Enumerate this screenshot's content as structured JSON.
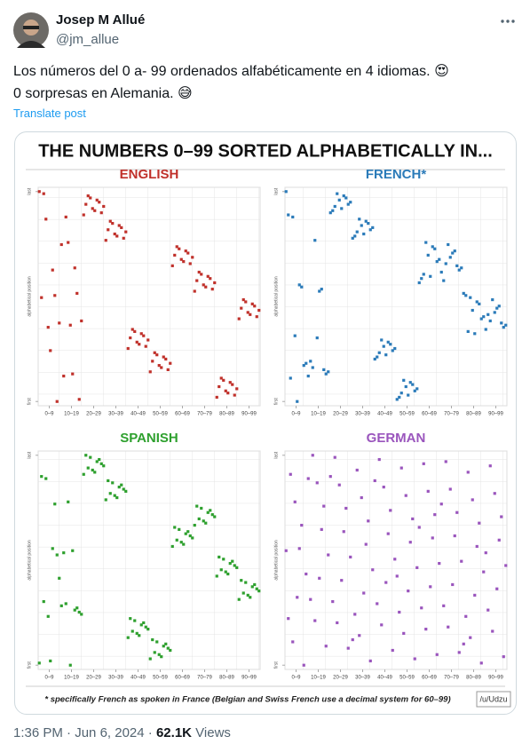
{
  "tweet": {
    "name": "Josep M Allué",
    "handle": "@jm_allue",
    "text_line1": "Los números del 0 a- 99 ordenados alfabéticamente en 4 idiomas. 😍",
    "text_line2": "0 sorpresas en Alemania. 😅",
    "translate": "Translate post",
    "time": "1:36 PM",
    "separator": "·",
    "date": "Jun 6, 2024",
    "views": "62.1K",
    "views_label": "Views"
  },
  "image": {
    "title": "THE NUMBERS 0–99 SORTED ALPHABETICALLY IN...",
    "footnote": "* specifically French as spoken in France (Belgian and Swiss French use a decimal system for 60–99)",
    "credit": "/u/Udzu"
  },
  "chart_data": [
    {
      "type": "scatter",
      "title": "ENGLISH",
      "color": "#c0312b",
      "ylabel": "alphabetical position",
      "xlim": [
        -0.5,
        99.5
      ],
      "ylim": [
        -2,
        101
      ],
      "xticks": [
        {
          "value": 4.5,
          "label": "0–9"
        },
        {
          "value": 14.5,
          "label": "10–19"
        },
        {
          "value": 24.5,
          "label": "20–29"
        },
        {
          "value": 34.5,
          "label": "30–39"
        },
        {
          "value": 44.5,
          "label": "40–49"
        },
        {
          "value": 54.5,
          "label": "50–59"
        },
        {
          "value": 64.5,
          "label": "60–69"
        },
        {
          "value": 74.5,
          "label": "70–79"
        },
        {
          "value": 84.5,
          "label": "80–89"
        },
        {
          "value": 94.5,
          "label": "90–99"
        }
      ],
      "yticks": [
        {
          "value": 0,
          "label": "first"
        },
        {
          "value": 99,
          "label": "last"
        }
      ],
      "x": [
        0,
        1,
        2,
        3,
        4,
        5,
        6,
        7,
        8,
        9,
        10,
        11,
        12,
        13,
        14,
        15,
        16,
        17,
        18,
        19,
        20,
        21,
        22,
        23,
        24,
        25,
        26,
        27,
        28,
        29,
        30,
        31,
        32,
        33,
        34,
        35,
        36,
        37,
        38,
        39,
        40,
        41,
        42,
        43,
        44,
        45,
        46,
        47,
        48,
        49,
        50,
        51,
        52,
        53,
        54,
        55,
        56,
        57,
        58,
        59,
        60,
        61,
        62,
        63,
        64,
        65,
        66,
        67,
        68,
        69,
        70,
        71,
        72,
        73,
        74,
        75,
        76,
        77,
        78,
        79,
        80,
        81,
        82,
        83,
        84,
        85,
        86,
        87,
        88,
        89,
        90,
        91,
        92,
        93,
        94,
        95,
        96,
        97,
        98,
        99
      ],
      "y": [
        99,
        49,
        98,
        86,
        35,
        24,
        62,
        50,
        0,
        37,
        74,
        12,
        87,
        75,
        36,
        13,
        63,
        51,
        1,
        38,
        88,
        93,
        97,
        96,
        91,
        90,
        95,
        94,
        89,
        92,
        76,
        81,
        85,
        84,
        79,
        78,
        83,
        82,
        77,
        80,
        25,
        30,
        34,
        33,
        28,
        27,
        32,
        31,
        26,
        29,
        14,
        19,
        23,
        22,
        17,
        16,
        21,
        20,
        15,
        18,
        64,
        69,
        73,
        72,
        67,
        66,
        71,
        70,
        65,
        68,
        52,
        57,
        61,
        60,
        55,
        54,
        59,
        58,
        53,
        56,
        2,
        7,
        11,
        10,
        5,
        4,
        9,
        8,
        3,
        6,
        39,
        44,
        48,
        47,
        42,
        41,
        46,
        45,
        40,
        43
      ]
    },
    {
      "type": "scatter",
      "title": "FRENCH*",
      "color": "#2b7bb9",
      "ylabel": "alphabetical position",
      "xlim": [
        -0.5,
        99.5
      ],
      "ylim": [
        -2,
        101
      ],
      "xticks": [
        {
          "value": 4.5,
          "label": "0–9"
        },
        {
          "value": 14.5,
          "label": "10–19"
        },
        {
          "value": 24.5,
          "label": "20–29"
        },
        {
          "value": 34.5,
          "label": "30–39"
        },
        {
          "value": 44.5,
          "label": "40–49"
        },
        {
          "value": 54.5,
          "label": "50–59"
        },
        {
          "value": 64.5,
          "label": "60–69"
        },
        {
          "value": 74.5,
          "label": "70–79"
        },
        {
          "value": 84.5,
          "label": "80–89"
        },
        {
          "value": 94.5,
          "label": "90–99"
        }
      ],
      "yticks": [
        {
          "value": 0,
          "label": "first"
        },
        {
          "value": 99,
          "label": "last"
        }
      ],
      "x": [
        0,
        1,
        2,
        3,
        4,
        5,
        6,
        7,
        8,
        9,
        10,
        11,
        12,
        13,
        14,
        15,
        16,
        17,
        18,
        19,
        20,
        21,
        22,
        23,
        24,
        25,
        26,
        27,
        28,
        29,
        30,
        31,
        32,
        33,
        34,
        35,
        36,
        37,
        38,
        39,
        40,
        41,
        42,
        43,
        44,
        45,
        46,
        47,
        48,
        49,
        50,
        51,
        52,
        53,
        54,
        55,
        56,
        57,
        58,
        59,
        60,
        61,
        62,
        63,
        64,
        65,
        66,
        67,
        68,
        69,
        70,
        71,
        72,
        73,
        74,
        75,
        76,
        77,
        78,
        79,
        80,
        81,
        82,
        83,
        84,
        85,
        86,
        87,
        88,
        89,
        90,
        91,
        92,
        93,
        94,
        95,
        96,
        97,
        98,
        99
      ],
      "y": [
        99,
        88,
        11,
        87,
        31,
        0,
        55,
        54,
        17,
        18,
        12,
        19,
        16,
        76,
        30,
        52,
        53,
        15,
        13,
        14,
        89,
        90,
        92,
        98,
        95,
        91,
        97,
        96,
        93,
        94,
        77,
        78,
        80,
        86,
        83,
        79,
        85,
        84,
        81,
        82,
        20,
        21,
        23,
        29,
        26,
        22,
        28,
        27,
        24,
        25,
        1,
        2,
        4,
        10,
        7,
        3,
        9,
        8,
        5,
        6,
        56,
        58,
        60,
        75,
        69,
        59,
        73,
        72,
        66,
        67,
        61,
        57,
        65,
        74,
        68,
        70,
        71,
        64,
        62,
        63,
        51,
        50,
        33,
        49,
        43,
        32,
        47,
        46,
        39,
        40,
        34,
        41,
        38,
        48,
        42,
        44,
        45,
        37,
        35,
        36
      ]
    },
    {
      "type": "scatter",
      "title": "SPANISH",
      "color": "#2ea02e",
      "ylabel": "alphabetical position",
      "xlim": [
        -0.5,
        99.5
      ],
      "ylim": [
        -2,
        101
      ],
      "xticks": [
        {
          "value": 4.5,
          "label": "0–9"
        },
        {
          "value": 14.5,
          "label": "10–19"
        },
        {
          "value": 24.5,
          "label": "20–29"
        },
        {
          "value": 34.5,
          "label": "30–39"
        },
        {
          "value": 44.5,
          "label": "40–49"
        },
        {
          "value": 54.5,
          "label": "50–59"
        },
        {
          "value": 64.5,
          "label": "60–69"
        },
        {
          "value": 74.5,
          "label": "70–79"
        },
        {
          "value": 84.5,
          "label": "80–89"
        },
        {
          "value": 94.5,
          "label": "90–99"
        }
      ],
      "yticks": [
        {
          "value": 0,
          "label": "first"
        },
        {
          "value": 99,
          "label": "last"
        }
      ],
      "x": [
        0,
        1,
        2,
        3,
        4,
        5,
        6,
        7,
        8,
        9,
        10,
        11,
        12,
        13,
        14,
        15,
        16,
        17,
        18,
        19,
        20,
        21,
        22,
        23,
        24,
        25,
        26,
        27,
        28,
        29,
        30,
        31,
        32,
        33,
        34,
        35,
        36,
        37,
        38,
        39,
        40,
        41,
        42,
        43,
        44,
        45,
        46,
        47,
        48,
        49,
        50,
        51,
        52,
        53,
        54,
        55,
        56,
        57,
        58,
        59,
        60,
        61,
        62,
        63,
        64,
        65,
        66,
        67,
        68,
        69,
        70,
        71,
        72,
        73,
        74,
        75,
        76,
        77,
        78,
        79,
        80,
        81,
        82,
        83,
        84,
        85,
        86,
        87,
        88,
        89,
        90,
        91,
        92,
        93,
        94,
        95,
        96,
        97,
        98,
        99
      ],
      "y": [
        1,
        89,
        30,
        88,
        23,
        2,
        55,
        76,
        52,
        41,
        28,
        53,
        29,
        77,
        0,
        54,
        26,
        27,
        25,
        24,
        90,
        99,
        93,
        98,
        92,
        91,
        96,
        97,
        95,
        94,
        78,
        87,
        81,
        86,
        80,
        79,
        84,
        85,
        83,
        82,
        13,
        22,
        16,
        21,
        15,
        14,
        19,
        20,
        18,
        17,
        3,
        12,
        6,
        11,
        5,
        4,
        9,
        10,
        8,
        7,
        56,
        65,
        59,
        64,
        58,
        57,
        62,
        63,
        61,
        60,
        66,
        75,
        69,
        74,
        68,
        67,
        72,
        73,
        71,
        70,
        42,
        51,
        45,
        50,
        44,
        43,
        48,
        49,
        47,
        46,
        31,
        40,
        34,
        39,
        33,
        32,
        37,
        38,
        36,
        35
      ]
    },
    {
      "type": "scatter",
      "title": "GERMAN",
      "color": "#9a55bd",
      "ylabel": "alphabetical position",
      "xlim": [
        -0.5,
        99.5
      ],
      "ylim": [
        -2,
        101
      ],
      "xticks": [
        {
          "value": 4.5,
          "label": "0–9"
        },
        {
          "value": 14.5,
          "label": "10–19"
        },
        {
          "value": 24.5,
          "label": "20–29"
        },
        {
          "value": 34.5,
          "label": "30–39"
        },
        {
          "value": 44.5,
          "label": "40–49"
        },
        {
          "value": 54.5,
          "label": "50–59"
        },
        {
          "value": 64.5,
          "label": "60–69"
        },
        {
          "value": 74.5,
          "label": "70–79"
        },
        {
          "value": 84.5,
          "label": "80–89"
        },
        {
          "value": 94.5,
          "label": "90–99"
        }
      ],
      "yticks": [
        {
          "value": 0,
          "label": "first"
        },
        {
          "value": 99,
          "label": "last"
        }
      ],
      "x": [
        0,
        1,
        2,
        3,
        4,
        5,
        6,
        7,
        8,
        9,
        10,
        11,
        12,
        13,
        14,
        15,
        16,
        17,
        18,
        19,
        20,
        21,
        22,
        23,
        24,
        25,
        26,
        27,
        28,
        29,
        30,
        31,
        32,
        33,
        34,
        35,
        36,
        37,
        38,
        39,
        40,
        41,
        42,
        43,
        44,
        45,
        46,
        47,
        48,
        49,
        50,
        51,
        52,
        53,
        54,
        55,
        56,
        57,
        58,
        59,
        60,
        61,
        62,
        63,
        64,
        65,
        66,
        67,
        68,
        69,
        70,
        71,
        72,
        73,
        74,
        75,
        76,
        77,
        78,
        79,
        80,
        81,
        82,
        83,
        84,
        85,
        86,
        87,
        88,
        89,
        90,
        91,
        92,
        93,
        94,
        95,
        96,
        97,
        98,
        99
      ],
      "y": [
        54,
        22,
        90,
        11,
        77,
        32,
        55,
        66,
        0,
        43,
        88,
        31,
        99,
        21,
        86,
        41,
        64,
        75,
        9,
        52,
        89,
        30,
        98,
        20,
        85,
        40,
        63,
        74,
        8,
        51,
        12,
        24,
        92,
        14,
        79,
        34,
        57,
        68,
        2,
        45,
        87,
        29,
        97,
        19,
        84,
        39,
        62,
        73,
        7,
        50,
        42,
        25,
        93,
        15,
        80,
        35,
        58,
        69,
        3,
        46,
        65,
        27,
        95,
        17,
        82,
        37,
        60,
        71,
        5,
        48,
        76,
        28,
        96,
        18,
        83,
        38,
        61,
        72,
        6,
        49,
        10,
        23,
        91,
        13,
        78,
        33,
        56,
        67,
        1,
        44,
        53,
        26,
        94,
        16,
        81,
        36,
        59,
        70,
        4,
        47
      ]
    }
  ]
}
